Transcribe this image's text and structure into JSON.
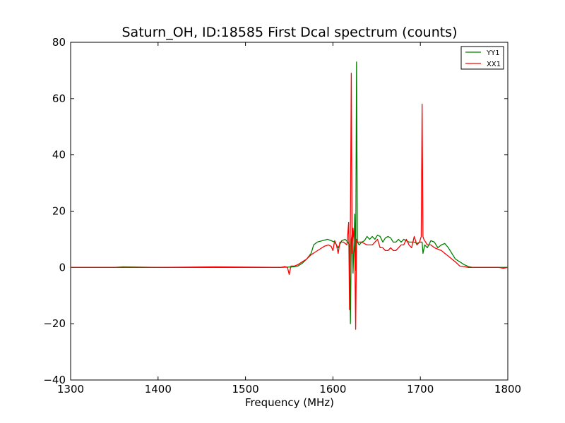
{
  "chart_data": {
    "type": "line",
    "title": "Saturn_OH, ID:18585 First Dcal spectrum (counts)",
    "xlabel": "Frequency (MHz)",
    "ylabel": "",
    "xlim": [
      1300,
      1800
    ],
    "ylim": [
      -40,
      80
    ],
    "xticks": [
      1300,
      1400,
      1500,
      1600,
      1700,
      1800
    ],
    "yticks": [
      -40,
      -20,
      0,
      20,
      40,
      60,
      80
    ],
    "xtick_labels": [
      "1300",
      "1400",
      "1500",
      "1600",
      "1700",
      "1800"
    ],
    "ytick_labels": [
      "−40",
      "−20",
      "0",
      "20",
      "40",
      "60",
      "80"
    ],
    "grid": false,
    "legend_position": "top-right",
    "series": [
      {
        "name": "YY1",
        "color": "#008000",
        "x": [
          1300,
          1350,
          1360,
          1380,
          1400,
          1450,
          1500,
          1540,
          1555,
          1560,
          1565,
          1570,
          1575,
          1578,
          1582,
          1588,
          1594,
          1598,
          1602,
          1606,
          1610,
          1614,
          1617,
          1619,
          1620,
          1621,
          1622,
          1623,
          1624,
          1625,
          1626,
          1627,
          1628,
          1630,
          1633,
          1636,
          1639,
          1642,
          1645,
          1648,
          1651,
          1654,
          1657,
          1660,
          1663,
          1666,
          1669,
          1672,
          1675,
          1678,
          1681,
          1684,
          1687,
          1690,
          1693,
          1696,
          1699,
          1702,
          1703,
          1705,
          1708,
          1712,
          1716,
          1720,
          1724,
          1728,
          1732,
          1736,
          1740,
          1745,
          1750,
          1755,
          1760,
          1770,
          1780,
          1790,
          1800
        ],
        "y": [
          0,
          0,
          0.2,
          0.1,
          0,
          0,
          0,
          0,
          0.2,
          0.5,
          1.5,
          3,
          5,
          8,
          9,
          9.5,
          10,
          9.5,
          9,
          7,
          9.5,
          10,
          9,
          8,
          -20,
          10,
          12,
          -2,
          8,
          19,
          -1,
          73,
          9,
          8,
          9,
          9.5,
          11,
          10,
          11,
          10,
          11.5,
          11,
          9,
          10.5,
          11,
          10.5,
          9,
          9,
          10,
          9,
          10,
          9.5,
          9,
          9,
          9,
          8.5,
          9,
          9,
          5,
          8,
          7,
          9.5,
          9,
          7,
          8,
          8.5,
          7,
          5,
          3,
          2,
          1,
          0.3,
          0,
          0,
          0,
          0,
          0
        ]
      },
      {
        "name": "XX1",
        "color": "#ff0000",
        "x": [
          1300,
          1400,
          1465,
          1540,
          1545,
          1548,
          1550,
          1552,
          1556,
          1560,
          1565,
          1570,
          1575,
          1580,
          1585,
          1590,
          1595,
          1598,
          1600,
          1602,
          1604,
          1606,
          1608,
          1612,
          1616,
          1618,
          1619,
          1620,
          1621,
          1622,
          1623,
          1624,
          1625,
          1626,
          1627,
          1628,
          1630,
          1633,
          1636,
          1639,
          1642,
          1645,
          1648,
          1651,
          1654,
          1657,
          1660,
          1663,
          1666,
          1669,
          1672,
          1675,
          1678,
          1681,
          1684,
          1687,
          1690,
          1693,
          1696,
          1699,
          1701,
          1702,
          1703,
          1704,
          1706,
          1708,
          1712,
          1716,
          1720,
          1724,
          1728,
          1732,
          1736,
          1740,
          1745,
          1750,
          1755,
          1760,
          1770,
          1780,
          1790,
          1795,
          1800
        ],
        "y": [
          0,
          0,
          0.2,
          0,
          0.3,
          0,
          -2.5,
          0.5,
          0.5,
          1,
          2,
          3,
          4.5,
          5.5,
          6.5,
          7.5,
          8,
          7.5,
          6,
          9.5,
          8,
          5,
          9,
          9,
          8,
          16,
          -15,
          16,
          69,
          5,
          14,
          10,
          5,
          -22,
          10,
          9,
          9,
          9,
          8.5,
          8,
          8,
          8,
          9,
          10,
          7,
          7,
          6,
          6,
          7,
          6,
          6,
          7,
          8,
          8,
          10,
          8,
          7,
          11,
          8,
          9,
          11,
          58,
          11,
          10,
          9,
          8,
          8,
          7,
          6.5,
          6,
          5,
          4,
          3,
          2,
          0.5,
          0.3,
          0,
          0,
          0,
          0,
          0,
          -0.3,
          0
        ]
      }
    ]
  }
}
